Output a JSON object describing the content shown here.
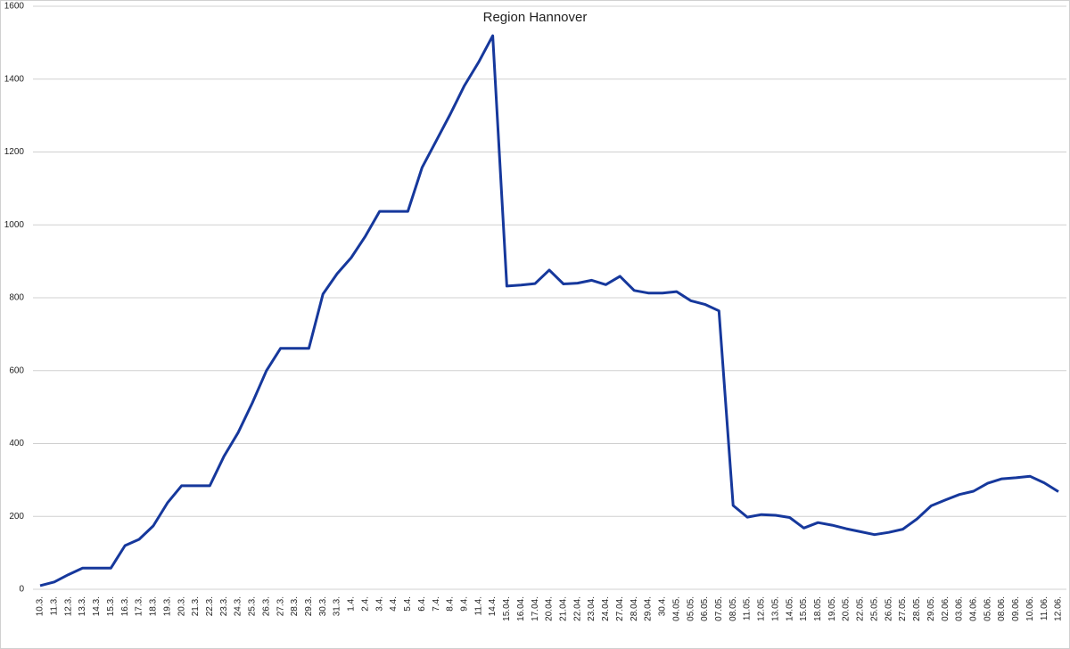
{
  "chart_data": {
    "type": "line",
    "title": "Region Hannover",
    "categories": [
      "10.3.",
      "11.3.",
      "12.3.",
      "13.3.",
      "14.3.",
      "15.3.",
      "16.3.",
      "17.3.",
      "18.3.",
      "19.3.",
      "20.3.",
      "21.3.",
      "22.3.",
      "23.3.",
      "24.3.",
      "25.3.",
      "26.3.",
      "27.3.",
      "28.3.",
      "29.3.",
      "30.3.",
      "31.3.",
      "1.4.",
      "2.4.",
      "3.4.",
      "4.4.",
      "5.4.",
      "6.4.",
      "7.4.",
      "8.4.",
      "9.4.",
      "11.4.",
      "14.4.",
      "15.04.",
      "16.04.",
      "17.04.",
      "20.04.",
      "21.04.",
      "22.04.",
      "23.04.",
      "24.04.",
      "27.04.",
      "28.04.",
      "29.04.",
      "30.4.",
      "04.05.",
      "05.05.",
      "06.05.",
      "07.05.",
      "08.05.",
      "11.05.",
      "12.05.",
      "13.05.",
      "14.05.",
      "15.05.",
      "18.05.",
      "19.05.",
      "20.05.",
      "22.05.",
      "25.05.",
      "26.05.",
      "27.05.",
      "28.05.",
      "29.05.",
      "02.06.",
      "03.06.",
      "04.06.",
      "05.06.",
      "08.06.",
      "09.06.",
      "10.06.",
      "11.06.",
      "12.06."
    ],
    "values": [
      10,
      20,
      40,
      58,
      58,
      58,
      120,
      137,
      174,
      237,
      284,
      284,
      284,
      365,
      430,
      511,
      600,
      661,
      661,
      661,
      810,
      866,
      910,
      969,
      1037,
      1037,
      1037,
      1157,
      1230,
      1304,
      1382,
      1446,
      1519,
      832,
      835,
      839,
      876,
      838,
      840,
      848,
      836,
      859,
      820,
      813,
      813,
      817,
      792,
      782,
      764,
      230,
      198,
      205,
      203,
      197,
      168,
      183,
      176,
      166,
      158,
      150,
      156,
      165,
      193,
      229,
      245,
      260,
      269,
      291,
      303,
      306,
      310,
      292,
      268
    ],
    "color": "#16389c",
    "ylim": [
      0,
      1600
    ],
    "yticks": [
      0,
      200,
      400,
      600,
      800,
      1000,
      1200,
      1400,
      1600
    ],
    "grid": true
  }
}
